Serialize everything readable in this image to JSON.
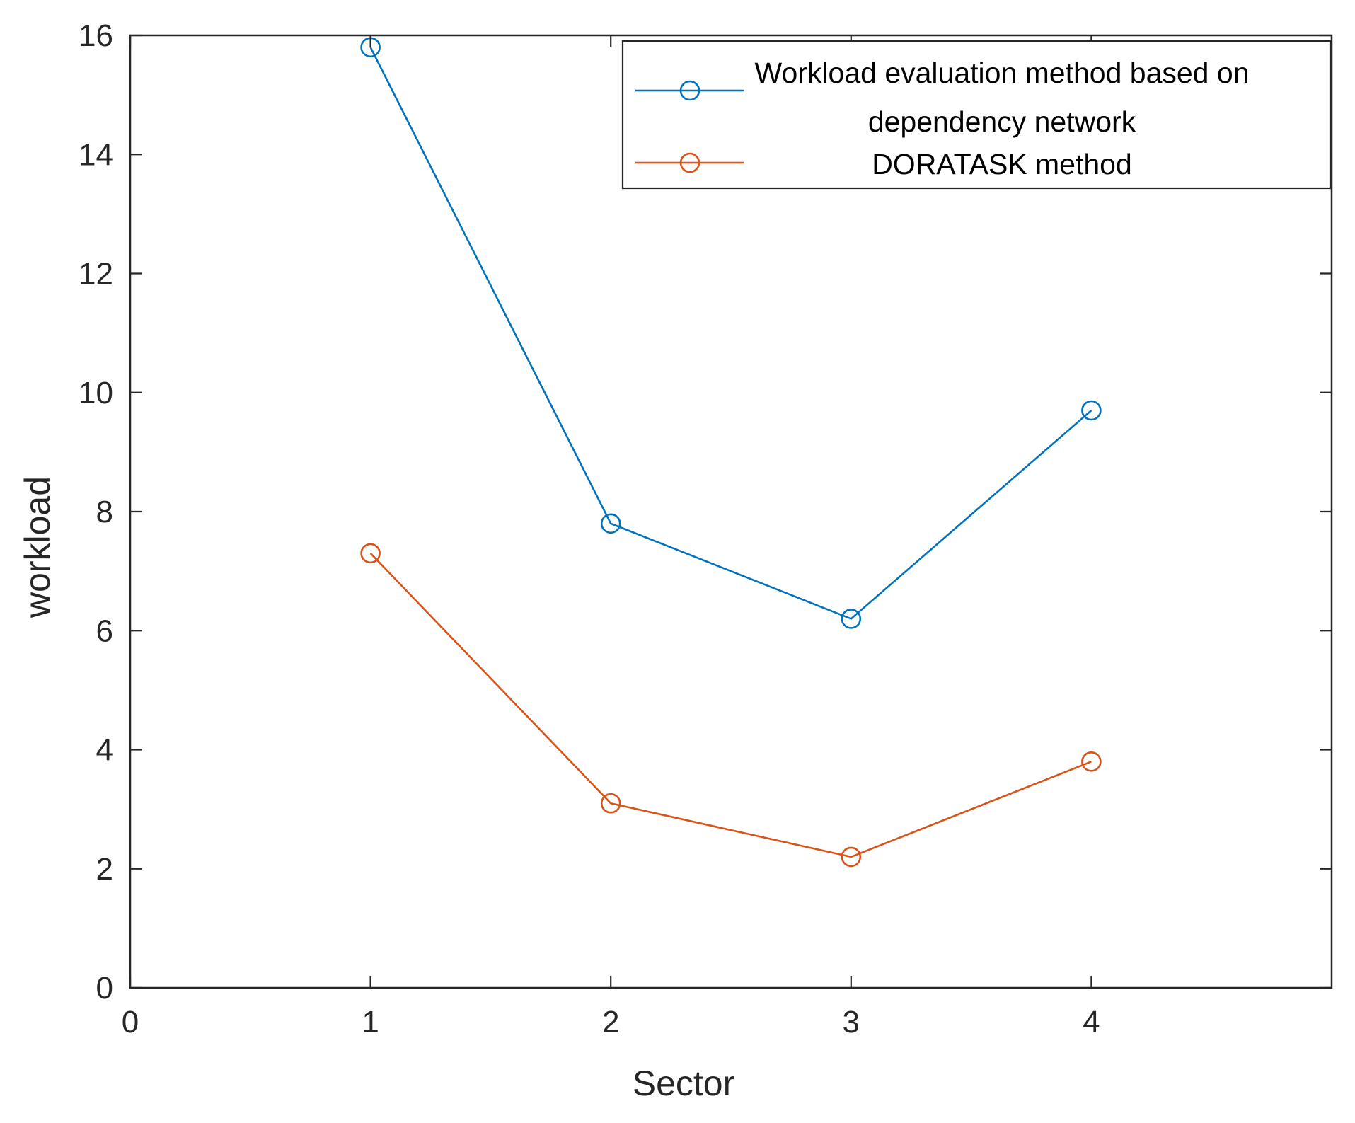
{
  "chart_data": {
    "type": "line",
    "title": "",
    "xlabel": "Sector",
    "ylabel": "workload",
    "xlim": [
      0,
      5
    ],
    "ylim": [
      0,
      16
    ],
    "xticks": [
      0,
      1,
      2,
      3,
      4
    ],
    "yticks": [
      0,
      2,
      4,
      6,
      8,
      10,
      12,
      14,
      16
    ],
    "grid": false,
    "legend_position": "top-right",
    "x": [
      1,
      2,
      3,
      4
    ],
    "series": [
      {
        "name": "Workload evaluation method based on dependency network",
        "legend_lines": [
          "Workload evaluation method based on",
          "dependency network"
        ],
        "color": "#0072BD",
        "marker": "open-circle",
        "values": [
          15.8,
          7.8,
          6.2,
          9.7
        ]
      },
      {
        "name": "DORATASK method",
        "legend_lines": [
          "DORATASK method"
        ],
        "color": "#D95319",
        "marker": "open-circle",
        "values": [
          7.3,
          3.1,
          2.2,
          3.8
        ]
      }
    ]
  }
}
